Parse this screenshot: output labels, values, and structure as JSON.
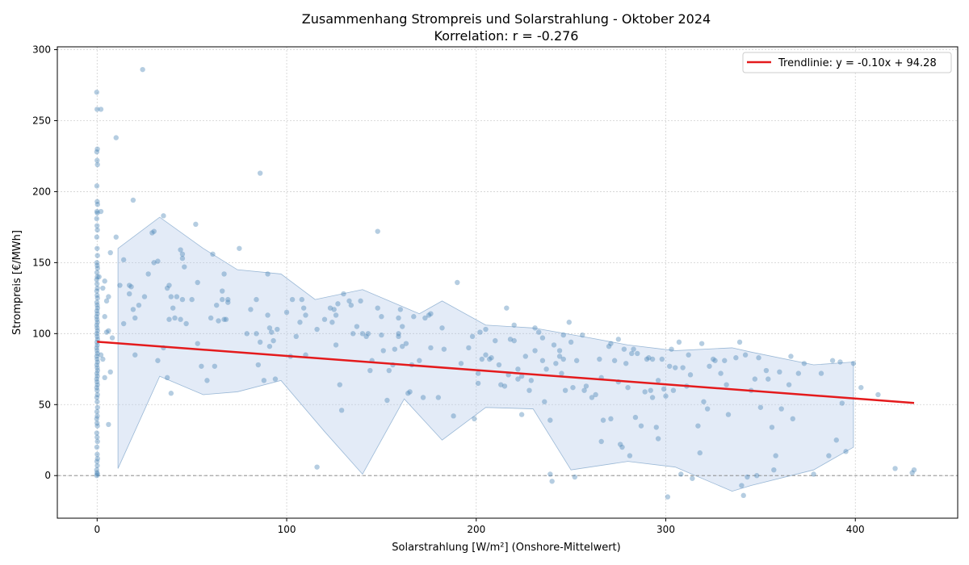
{
  "chart_data": {
    "type": "scatter",
    "title": "Zusammenhang Strompreis und Solarstrahlung - Oktober 2024",
    "subtitle": "Korrelation: r = -0.276",
    "xlabel": "Solarstrahlung [W/m²] (Onshore-Mittelwert)",
    "ylabel": "Strompreis [€/MWh]",
    "xlim": [
      -21,
      454
    ],
    "ylim": [
      -30,
      302
    ],
    "xticks": [
      0,
      100,
      200,
      300,
      400
    ],
    "yticks": [
      0,
      50,
      100,
      150,
      200,
      250,
      300
    ],
    "grid": true,
    "legend_position": "top-right",
    "colors": {
      "points": "#4682b4",
      "trend": "#e41a1c",
      "band": "#aec7e8",
      "zero_line": "#808080"
    },
    "trendline": {
      "label": "Trendlinie: y = -0.10x + 94.28",
      "slope": -0.1,
      "intercept": 94.28,
      "x_range": [
        0,
        431
      ]
    },
    "band": {
      "upper": [
        [
          11,
          160
        ],
        [
          33,
          182
        ],
        [
          56,
          160
        ],
        [
          74,
          145
        ],
        [
          97,
          142
        ],
        [
          115,
          124
        ],
        [
          140,
          131
        ],
        [
          170,
          114
        ],
        [
          182,
          123
        ],
        [
          205,
          106
        ],
        [
          230,
          104
        ],
        [
          260,
          97
        ],
        [
          280,
          92
        ],
        [
          305,
          88
        ],
        [
          335,
          90
        ],
        [
          345,
          87
        ],
        [
          378,
          78
        ],
        [
          399,
          80
        ]
      ],
      "lower": [
        [
          11,
          5
        ],
        [
          33,
          70
        ],
        [
          56,
          57
        ],
        [
          74,
          59
        ],
        [
          97,
          67
        ],
        [
          120,
          31
        ],
        [
          140,
          1
        ],
        [
          162,
          54
        ],
        [
          182,
          25
        ],
        [
          205,
          48
        ],
        [
          230,
          47
        ],
        [
          250,
          4
        ],
        [
          280,
          10
        ],
        [
          305,
          6
        ],
        [
          335,
          -11
        ],
        [
          345,
          -7
        ],
        [
          378,
          4
        ],
        [
          399,
          20
        ]
      ]
    },
    "zero_points": [
      270,
      258,
      230,
      228,
      222,
      219,
      204,
      193,
      191,
      186,
      185,
      181,
      176,
      173,
      168,
      160,
      155,
      150,
      148,
      146,
      143,
      140,
      138,
      135,
      132,
      130,
      127,
      125,
      122,
      120,
      118,
      116,
      114,
      112,
      110,
      108,
      106,
      104,
      102,
      100,
      98,
      96,
      94,
      92,
      90,
      88,
      86,
      84,
      82,
      80,
      78,
      76,
      74,
      72,
      70,
      68,
      66,
      64,
      62,
      60,
      57,
      55,
      52,
      48,
      45,
      42,
      40,
      37,
      35,
      30,
      27,
      24,
      20,
      15,
      12,
      10,
      7,
      4,
      2,
      1,
      0
    ],
    "points": [
      [
        2,
        258
      ],
      [
        10,
        238
      ],
      [
        2,
        186
      ],
      [
        7,
        157
      ],
      [
        4,
        137
      ],
      [
        3,
        132
      ],
      [
        1,
        140
      ],
      [
        6,
        126
      ],
      [
        5,
        123
      ],
      [
        4,
        112
      ],
      [
        8,
        97
      ],
      [
        5,
        101
      ],
      [
        6,
        102
      ],
      [
        7,
        73
      ],
      [
        4,
        69
      ],
      [
        6,
        36
      ],
      [
        3,
        82
      ],
      [
        2,
        85
      ],
      [
        24,
        286
      ],
      [
        86,
        213
      ],
      [
        19,
        194
      ],
      [
        10,
        168
      ],
      [
        14,
        152
      ],
      [
        17,
        134
      ],
      [
        18,
        133
      ],
      [
        17,
        128
      ],
      [
        22,
        120
      ],
      [
        19,
        117
      ],
      [
        20,
        111
      ],
      [
        25,
        126
      ],
      [
        12,
        134
      ],
      [
        14,
        107
      ],
      [
        20,
        85
      ],
      [
        29,
        171
      ],
      [
        30,
        172
      ],
      [
        35,
        183
      ],
      [
        32,
        151
      ],
      [
        30,
        150
      ],
      [
        27,
        142
      ],
      [
        37,
        132
      ],
      [
        38,
        134
      ],
      [
        39,
        126
      ],
      [
        40,
        118
      ],
      [
        38,
        110
      ],
      [
        41,
        111
      ],
      [
        35,
        90
      ],
      [
        32,
        81
      ],
      [
        37,
        69
      ],
      [
        39,
        58
      ],
      [
        44,
        159
      ],
      [
        45,
        156
      ],
      [
        45,
        153
      ],
      [
        46,
        147
      ],
      [
        50,
        124
      ],
      [
        45,
        124
      ],
      [
        44,
        110
      ],
      [
        47,
        107
      ],
      [
        42,
        126
      ],
      [
        52,
        177
      ],
      [
        53,
        136
      ],
      [
        55,
        77
      ],
      [
        53,
        93
      ],
      [
        61,
        156
      ],
      [
        60,
        111
      ],
      [
        63,
        120
      ],
      [
        64,
        109
      ],
      [
        66,
        130
      ],
      [
        66,
        124
      ],
      [
        69,
        124
      ],
      [
        68,
        110
      ],
      [
        69,
        122
      ],
      [
        67,
        110
      ],
      [
        67,
        142
      ],
      [
        62,
        77
      ],
      [
        58,
        67
      ],
      [
        75,
        160
      ],
      [
        79,
        100
      ],
      [
        81,
        117
      ],
      [
        84,
        124
      ],
      [
        84,
        100
      ],
      [
        85,
        78
      ],
      [
        86,
        94
      ],
      [
        88,
        67
      ],
      [
        90,
        142
      ],
      [
        90,
        113
      ],
      [
        91,
        104
      ],
      [
        92,
        101
      ],
      [
        93,
        95
      ],
      [
        91,
        91
      ],
      [
        95,
        103
      ],
      [
        94,
        68
      ],
      [
        100,
        115
      ],
      [
        102,
        84
      ],
      [
        103,
        124
      ],
      [
        105,
        98
      ],
      [
        107,
        108
      ],
      [
        108,
        124
      ],
      [
        109,
        118
      ],
      [
        110,
        113
      ],
      [
        110,
        85
      ],
      [
        116,
        103
      ],
      [
        116,
        6
      ],
      [
        120,
        110
      ],
      [
        123,
        118
      ],
      [
        125,
        117
      ],
      [
        124,
        108
      ],
      [
        126,
        113
      ],
      [
        127,
        121
      ],
      [
        126,
        92
      ],
      [
        128,
        64
      ],
      [
        129,
        46
      ],
      [
        130,
        128
      ],
      [
        133,
        123
      ],
      [
        134,
        120
      ],
      [
        135,
        100
      ],
      [
        137,
        105
      ],
      [
        139,
        123
      ],
      [
        140,
        100
      ],
      [
        142,
        98
      ],
      [
        143,
        100
      ],
      [
        145,
        81
      ],
      [
        144,
        74
      ],
      [
        148,
        118
      ],
      [
        148,
        172
      ],
      [
        150,
        99
      ],
      [
        150,
        112
      ],
      [
        151,
        88
      ],
      [
        153,
        53
      ],
      [
        154,
        74
      ],
      [
        156,
        78
      ],
      [
        157,
        89
      ],
      [
        159,
        111
      ],
      [
        159,
        100
      ],
      [
        159,
        98
      ],
      [
        160,
        117
      ],
      [
        161,
        105
      ],
      [
        161,
        91
      ],
      [
        163,
        93
      ],
      [
        164,
        58
      ],
      [
        165,
        59
      ],
      [
        166,
        78
      ],
      [
        167,
        112
      ],
      [
        170,
        81
      ],
      [
        172,
        55
      ],
      [
        173,
        111
      ],
      [
        175,
        113
      ],
      [
        176,
        114
      ],
      [
        176,
        90
      ],
      [
        180,
        55
      ],
      [
        182,
        104
      ],
      [
        183,
        89
      ],
      [
        188,
        42
      ],
      [
        190,
        136
      ],
      [
        192,
        79
      ],
      [
        196,
        90
      ],
      [
        198,
        98
      ],
      [
        199,
        40
      ],
      [
        201,
        65
      ],
      [
        201,
        72
      ],
      [
        202,
        101
      ],
      [
        203,
        82
      ],
      [
        205,
        85
      ],
      [
        205,
        103
      ],
      [
        207,
        82
      ],
      [
        208,
        83
      ],
      [
        210,
        95
      ],
      [
        212,
        78
      ],
      [
        213,
        64
      ],
      [
        215,
        63
      ],
      [
        216,
        118
      ],
      [
        217,
        71
      ],
      [
        218,
        96
      ],
      [
        220,
        106
      ],
      [
        220,
        95
      ],
      [
        222,
        68
      ],
      [
        222,
        75
      ],
      [
        224,
        70
      ],
      [
        224,
        43
      ],
      [
        226,
        84
      ],
      [
        228,
        60
      ],
      [
        229,
        67
      ],
      [
        231,
        88
      ],
      [
        231,
        104
      ],
      [
        233,
        101
      ],
      [
        235,
        81
      ],
      [
        235,
        97
      ],
      [
        236,
        52
      ],
      [
        237,
        75
      ],
      [
        239,
        39
      ],
      [
        239,
        1
      ],
      [
        240,
        -4
      ],
      [
        241,
        92
      ],
      [
        242,
        79
      ],
      [
        244,
        84
      ],
      [
        244,
        88
      ],
      [
        245,
        72
      ],
      [
        246,
        82
      ],
      [
        246,
        99
      ],
      [
        247,
        60
      ],
      [
        249,
        108
      ],
      [
        250,
        94
      ],
      [
        251,
        62
      ],
      [
        252,
        -1
      ],
      [
        253,
        81
      ],
      [
        256,
        99
      ],
      [
        257,
        60
      ],
      [
        258,
        63
      ],
      [
        261,
        55
      ],
      [
        263,
        57
      ],
      [
        265,
        82
      ],
      [
        266,
        69
      ],
      [
        266,
        24
      ],
      [
        267,
        39
      ],
      [
        270,
        91
      ],
      [
        271,
        93
      ],
      [
        271,
        40
      ],
      [
        273,
        81
      ],
      [
        275,
        96
      ],
      [
        275,
        66
      ],
      [
        276,
        22
      ],
      [
        277,
        20
      ],
      [
        278,
        89
      ],
      [
        279,
        79
      ],
      [
        280,
        62
      ],
      [
        281,
        14
      ],
      [
        282,
        86
      ],
      [
        283,
        89
      ],
      [
        284,
        41
      ],
      [
        285,
        86
      ],
      [
        287,
        35
      ],
      [
        289,
        59
      ],
      [
        290,
        82
      ],
      [
        291,
        83
      ],
      [
        292,
        60
      ],
      [
        293,
        55
      ],
      [
        293,
        82
      ],
      [
        295,
        34
      ],
      [
        296,
        26
      ],
      [
        296,
        67
      ],
      [
        298,
        82
      ],
      [
        299,
        61
      ],
      [
        300,
        56
      ],
      [
        301,
        -15
      ],
      [
        302,
        77
      ],
      [
        303,
        89
      ],
      [
        304,
        60
      ],
      [
        305,
        76
      ],
      [
        307,
        94
      ],
      [
        308,
        1
      ],
      [
        309,
        76
      ],
      [
        311,
        63
      ],
      [
        312,
        85
      ],
      [
        313,
        71
      ],
      [
        314,
        -2
      ],
      [
        317,
        35
      ],
      [
        318,
        16
      ],
      [
        319,
        93
      ],
      [
        320,
        52
      ],
      [
        322,
        47
      ],
      [
        323,
        77
      ],
      [
        325,
        82
      ],
      [
        326,
        81
      ],
      [
        329,
        72
      ],
      [
        331,
        81
      ],
      [
        332,
        64
      ],
      [
        333,
        43
      ],
      [
        337,
        83
      ],
      [
        339,
        94
      ],
      [
        340,
        -7
      ],
      [
        341,
        -14
      ],
      [
        342,
        85
      ],
      [
        343,
        -1
      ],
      [
        345,
        60
      ],
      [
        347,
        68
      ],
      [
        348,
        0
      ],
      [
        349,
        83
      ],
      [
        350,
        48
      ],
      [
        353,
        74
      ],
      [
        354,
        68
      ],
      [
        356,
        34
      ],
      [
        357,
        4
      ],
      [
        358,
        14
      ],
      [
        360,
        73
      ],
      [
        361,
        47
      ],
      [
        365,
        64
      ],
      [
        366,
        84
      ],
      [
        367,
        40
      ],
      [
        370,
        72
      ],
      [
        373,
        79
      ],
      [
        378,
        1
      ],
      [
        382,
        72
      ],
      [
        386,
        14
      ],
      [
        388,
        81
      ],
      [
        390,
        25
      ],
      [
        392,
        80
      ],
      [
        393,
        51
      ],
      [
        395,
        17
      ],
      [
        399,
        79
      ],
      [
        403,
        62
      ],
      [
        412,
        57
      ],
      [
        421,
        5
      ],
      [
        430,
        2
      ],
      [
        431,
        4
      ]
    ]
  }
}
